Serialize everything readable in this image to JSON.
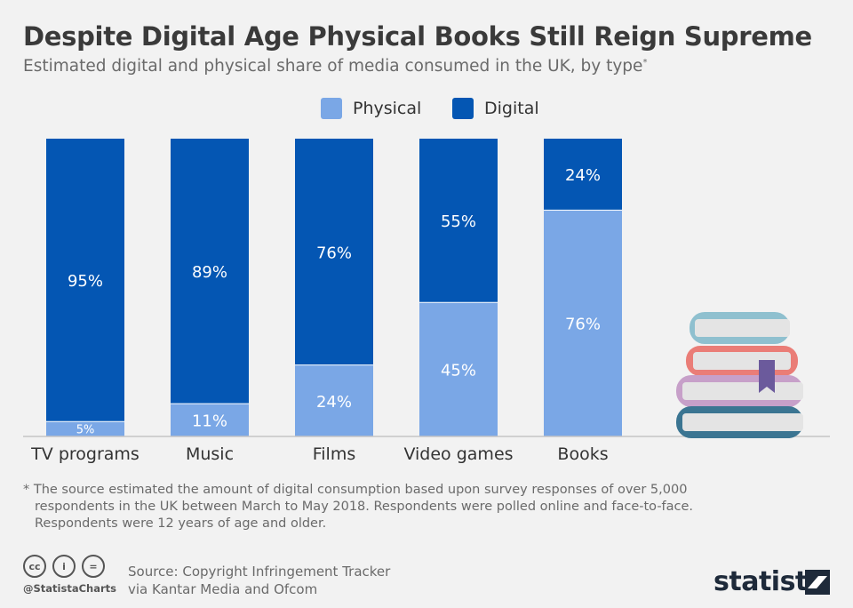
{
  "header": {
    "title": "Despite Digital Age Physical Books Still Reign Supreme",
    "subtitle": "Estimated digital and physical share of media consumed in the UK, by type",
    "subtitle_mark": "*"
  },
  "legend": {
    "physical_label": "Physical",
    "digital_label": "Digital"
  },
  "colors": {
    "physical": "#7aa7e6",
    "digital": "#0456b3",
    "background": "#f2f2f2"
  },
  "chart_data": {
    "type": "bar",
    "stacked": true,
    "categories": [
      "TV programs",
      "Music",
      "Films",
      "Video games",
      "Books"
    ],
    "series": [
      {
        "name": "Physical",
        "values": [
          5,
          11,
          24,
          45,
          76
        ],
        "labels": [
          "5%",
          "11%",
          "24%",
          "45%",
          "76%"
        ]
      },
      {
        "name": "Digital",
        "values": [
          95,
          89,
          76,
          55,
          24
        ],
        "labels": [
          "95%",
          "89%",
          "76%",
          "55%",
          "24%"
        ]
      }
    ],
    "ylim": [
      0,
      100
    ],
    "grid": false,
    "legend_position": "top-center"
  },
  "footnote": {
    "lines": [
      "* The source estimated the amount of digital consumption based upon survey responses of over 5,000",
      "respondents in the UK between March to May 2018. Respondents were polled online and face-to-face.",
      "Respondents were 12 years of age and older."
    ]
  },
  "footer": {
    "handle": "@StatistaCharts",
    "source_line1": "Source: Copyright Infringement Tracker",
    "source_line2": "via Kantar Media and Ofcom",
    "brand": "statista",
    "cc_icons": [
      "cc-icon",
      "attribution-icon",
      "no-derivatives-icon"
    ],
    "cc_glyphs": [
      "cc",
      "i",
      "="
    ]
  },
  "illustration": "books-stack-icon"
}
